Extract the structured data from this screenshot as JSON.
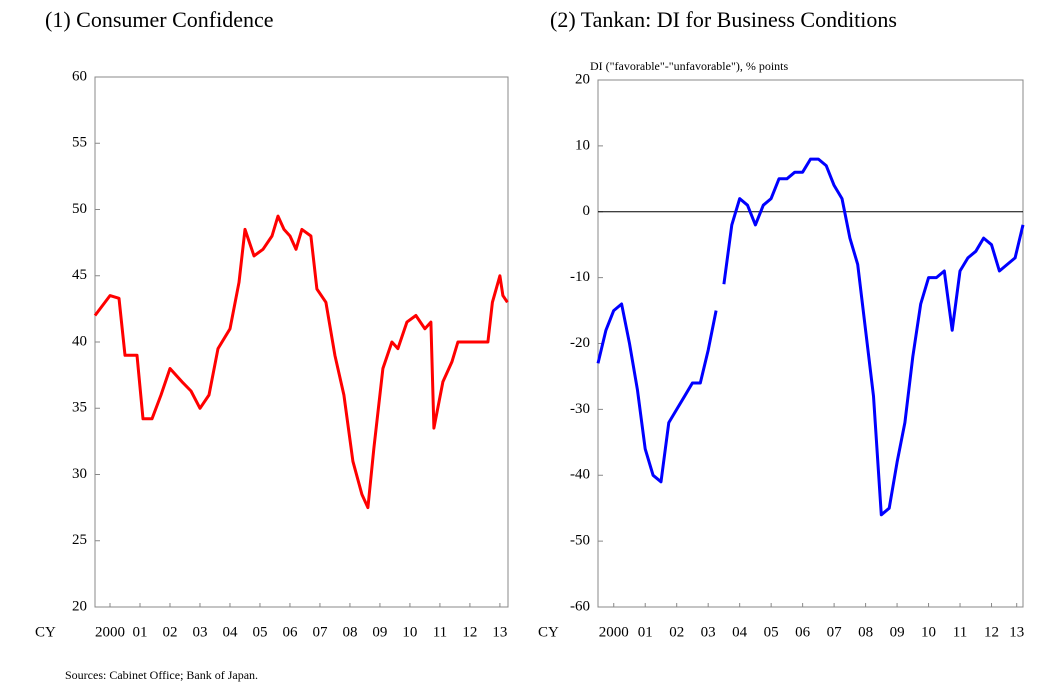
{
  "chart_data": [
    {
      "type": "line",
      "title": "(1) Consumer Confidence",
      "xlabel": "CY",
      "xlim": [
        2000,
        2013.77
      ],
      "ylim": [
        20,
        60
      ],
      "yticks": [
        20,
        25,
        30,
        35,
        40,
        45,
        50,
        55,
        60
      ],
      "xticks": [
        {
          "value": 2000.5,
          "label": "2000"
        },
        {
          "value": 2001.5,
          "label": "01"
        },
        {
          "value": 2002.5,
          "label": "02"
        },
        {
          "value": 2003.5,
          "label": "03"
        },
        {
          "value": 2004.5,
          "label": "04"
        },
        {
          "value": 2005.5,
          "label": "05"
        },
        {
          "value": 2006.5,
          "label": "06"
        },
        {
          "value": 2007.5,
          "label": "07"
        },
        {
          "value": 2008.5,
          "label": "08"
        },
        {
          "value": 2009.5,
          "label": "09"
        },
        {
          "value": 2010.5,
          "label": "10"
        },
        {
          "value": 2011.5,
          "label": "11"
        },
        {
          "value": 2012.5,
          "label": "12"
        },
        {
          "value": 2013.5,
          "label": "13"
        }
      ],
      "color": "#ff0000",
      "x": [
        2000.0,
        2000.5,
        2000.8,
        2001.0,
        2001.4,
        2001.6,
        2001.9,
        2002.2,
        2002.5,
        2002.9,
        2003.2,
        2003.5,
        2003.8,
        2004.1,
        2004.5,
        2004.8,
        2005.0,
        2005.3,
        2005.6,
        2005.9,
        2006.1,
        2006.3,
        2006.5,
        2006.7,
        2006.9,
        2007.2,
        2007.4,
        2007.7,
        2008.0,
        2008.3,
        2008.6,
        2008.9,
        2009.1,
        2009.3,
        2009.6,
        2009.9,
        2010.1,
        2010.4,
        2010.7,
        2011.0,
        2011.2,
        2011.3,
        2011.6,
        2011.9,
        2012.1,
        2012.5,
        2012.9,
        2013.1,
        2013.25,
        2013.5,
        2013.6,
        2013.75
      ],
      "values": [
        42,
        43.5,
        43.3,
        39,
        39,
        34.2,
        34.2,
        36,
        38,
        37,
        36.3,
        35,
        36,
        39.5,
        41,
        44.5,
        48.5,
        46.5,
        47,
        48,
        49.5,
        48.5,
        48,
        47,
        48.5,
        48,
        44,
        43,
        39,
        36,
        31,
        28.5,
        27.5,
        32,
        38,
        40,
        39.5,
        41.5,
        42,
        41,
        41.5,
        33.5,
        37,
        38.5,
        40,
        40,
        40,
        40,
        43,
        45,
        43.5,
        43
      ]
    },
    {
      "type": "line",
      "title": "(2) Tankan: DI for Business Conditions",
      "ylabel": "DI (\"favorable\"-\"unfavorable\"), % points",
      "xlabel": "CY",
      "xlim": [
        2000,
        2013.5
      ],
      "ylim": [
        -60,
        20
      ],
      "yticks": [
        -60,
        -50,
        -40,
        -30,
        -20,
        -10,
        0,
        10,
        20
      ],
      "zero_line": true,
      "xticks": [
        {
          "value": 2000.5,
          "label": "2000"
        },
        {
          "value": 2001.5,
          "label": "01"
        },
        {
          "value": 2002.5,
          "label": "02"
        },
        {
          "value": 2003.5,
          "label": "03"
        },
        {
          "value": 2004.5,
          "label": "04"
        },
        {
          "value": 2005.5,
          "label": "05"
        },
        {
          "value": 2006.5,
          "label": "06"
        },
        {
          "value": 2007.5,
          "label": "07"
        },
        {
          "value": 2008.5,
          "label": "08"
        },
        {
          "value": 2009.5,
          "label": "09"
        },
        {
          "value": 2010.5,
          "label": "10"
        },
        {
          "value": 2011.5,
          "label": "11"
        },
        {
          "value": 2012.5,
          "label": "12"
        },
        {
          "value": 2013.3,
          "label": "13"
        }
      ],
      "color": "#0000ff",
      "x": [
        2000.0,
        2000.25,
        2000.5,
        2000.75,
        2001.0,
        2001.25,
        2001.5,
        2001.75,
        2002.0,
        2002.25,
        2002.5,
        2002.75,
        2003.0,
        2003.25,
        2003.5,
        2003.75,
        2003.875,
        2004.0,
        2004.25,
        2004.5,
        2004.75,
        2005.0,
        2005.25,
        2005.5,
        2005.75,
        2006.0,
        2006.25,
        2006.5,
        2006.75,
        2007.0,
        2007.25,
        2007.5,
        2007.75,
        2008.0,
        2008.25,
        2008.5,
        2008.75,
        2009.0,
        2009.25,
        2009.5,
        2009.75,
        2010.0,
        2010.25,
        2010.5,
        2010.75,
        2011.0,
        2011.25,
        2011.5,
        2011.75,
        2012.0,
        2012.25,
        2012.5,
        2012.75,
        2013.0,
        2013.25,
        2013.5
      ],
      "values": [
        -23,
        -18,
        -15,
        -14,
        -20,
        -27,
        -36,
        -40,
        -41,
        -32,
        -30,
        -28,
        -26,
        -26,
        -21,
        -15,
        null,
        -11,
        -2,
        2,
        1,
        -2,
        1,
        2,
        5,
        5,
        6,
        6,
        8,
        8,
        7,
        4,
        2,
        -4,
        -8,
        -18,
        -28,
        -46,
        -45,
        -38,
        -32,
        -22,
        -14,
        -10,
        -10,
        -9,
        -18,
        -9,
        -7,
        -6,
        -4,
        -5,
        -9,
        -8,
        -7,
        -2
      ]
    }
  ],
  "source": "Sources: Cabinet Office; Bank of Japan."
}
